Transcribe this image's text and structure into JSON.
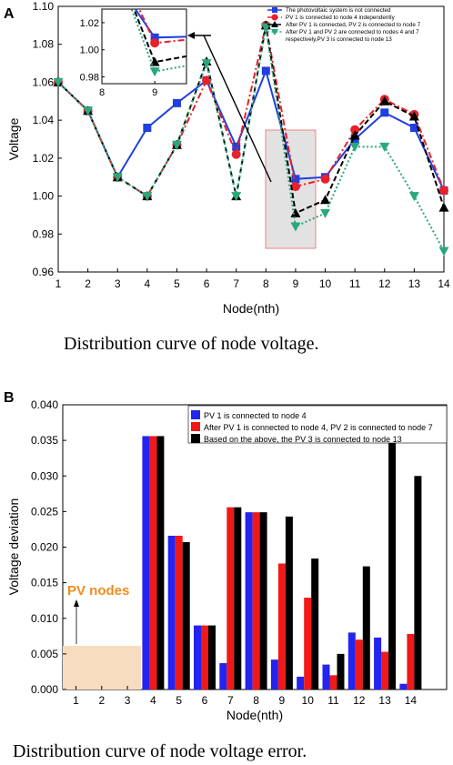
{
  "chart_data": [
    {
      "panel": "A",
      "type": "line",
      "title": "",
      "xlabel": "Node(nth)",
      "ylabel": "Voltage",
      "x": [
        1,
        2,
        3,
        4,
        5,
        6,
        7,
        8,
        9,
        10,
        11,
        12,
        13,
        14
      ],
      "xlim": [
        1,
        14
      ],
      "ylim": [
        0.96,
        1.1
      ],
      "yticks": [
        "0.96",
        "0.98",
        "1.00",
        "1.02",
        "1.04",
        "1.06",
        "1.08",
        "1.10"
      ],
      "series": [
        {
          "name": "The photovoltaic system is not connected",
          "color": "#1f3fe0",
          "marker": "square",
          "dash": "solid",
          "values": [
            1.06,
            1.045,
            1.01,
            1.036,
            1.049,
            1.061,
            1.026,
            1.066,
            1.009,
            1.01,
            1.03,
            1.044,
            1.036,
            1.003
          ]
        },
        {
          "name": "PV 1 is connected to node 4 independently",
          "color": "#e8202a",
          "marker": "circle",
          "dash": "dashdot",
          "values": [
            1.06,
            1.045,
            1.01,
            1.0,
            1.027,
            1.061,
            1.022,
            1.09,
            1.005,
            1.009,
            1.035,
            1.051,
            1.043,
            1.003
          ]
        },
        {
          "name": "After PV 1 is connected, PV 2 is connected to node 7",
          "color": "#000000",
          "marker": "triangle-up",
          "dash": "dash",
          "values": [
            1.06,
            1.045,
            1.01,
            1.0,
            1.027,
            1.071,
            1.0,
            1.09,
            0.991,
            0.998,
            1.032,
            1.05,
            1.042,
            0.994
          ]
        },
        {
          "name": "After PV 1 and PV 2 are connected to nodes 4 and 7 respectively,PV 3 is connected to node 13",
          "color": "#2aa87a",
          "marker": "triangle-down",
          "dash": "dot",
          "values": [
            1.06,
            1.045,
            1.01,
            1.0,
            1.027,
            1.07,
            1.0,
            1.089,
            0.984,
            0.991,
            1.026,
            1.026,
            1.0,
            0.971
          ]
        }
      ],
      "inset": {
        "xlim": [
          8,
          9.6
        ],
        "ylim": [
          0.975,
          1.03
        ],
        "xticks": [
          "8",
          "9"
        ],
        "yticks": [
          "0.98",
          "1.00",
          "1.02"
        ]
      },
      "caption": "Distribution curve of node voltage."
    },
    {
      "panel": "B",
      "type": "bar",
      "title": "",
      "xlabel": "Node(nth)",
      "ylabel": "Voltage deviation",
      "categories": [
        "1",
        "2",
        "3",
        "4",
        "5",
        "6",
        "7",
        "8",
        "9",
        "10",
        "11",
        "12",
        "13",
        "14"
      ],
      "ylim": [
        0,
        0.04
      ],
      "yticks": [
        "0.000",
        "0.005",
        "0.010",
        "0.015",
        "0.020",
        "0.025",
        "0.030",
        "0.035",
        "0.040"
      ],
      "series": [
        {
          "name": "PV 1 is connected to node 4",
          "color": "#2424f0",
          "values": [
            0,
            0,
            0,
            0.0356,
            0.0216,
            0.009,
            0.0037,
            0.0249,
            0.0042,
            0.0018,
            0.0035,
            0.008,
            0.0073,
            0.0008
          ]
        },
        {
          "name": "After PV 1 is connected to node 4, PV 2 is connected to node 7",
          "color": "#f01818",
          "values": [
            0,
            0,
            0,
            0.0356,
            0.0216,
            0.009,
            0.0256,
            0.0249,
            0.0177,
            0.0129,
            0.002,
            0.007,
            0.0053,
            0.0078
          ]
        },
        {
          "name": "Based on the above,  the PV 3 is connected to node 13",
          "color": "#000000",
          "values": [
            0,
            0,
            0,
            0.0356,
            0.0207,
            0.009,
            0.0256,
            0.0249,
            0.0243,
            0.0184,
            0.005,
            0.0173,
            0.0355,
            0.03
          ]
        }
      ],
      "annotation": {
        "text": "PV nodes",
        "color": "#f08c1e",
        "region_color": "#f8dcc0"
      },
      "caption": "Distribution curve of node voltage error."
    }
  ]
}
